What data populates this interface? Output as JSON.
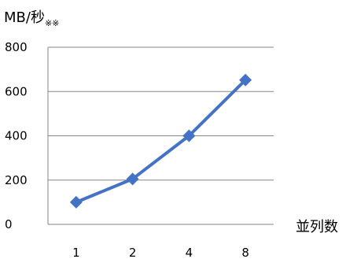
{
  "chart_data": {
    "type": "line",
    "title": "",
    "ylabel": "MB/秒",
    "ylabel_suffix": "※※",
    "xlabel": "並列数",
    "categories": [
      "1",
      "2",
      "4",
      "8"
    ],
    "series": [
      {
        "values": [
          100,
          205,
          400,
          652
        ]
      }
    ],
    "ylim": [
      0,
      800
    ],
    "yticks": [
      0,
      200,
      400,
      600,
      800
    ],
    "grid": true,
    "legend": "none",
    "colors": {
      "line": "#4472C4",
      "marker": "#4472C4",
      "grid": "#868686",
      "axis": "#868686"
    },
    "marker": "diamond"
  }
}
